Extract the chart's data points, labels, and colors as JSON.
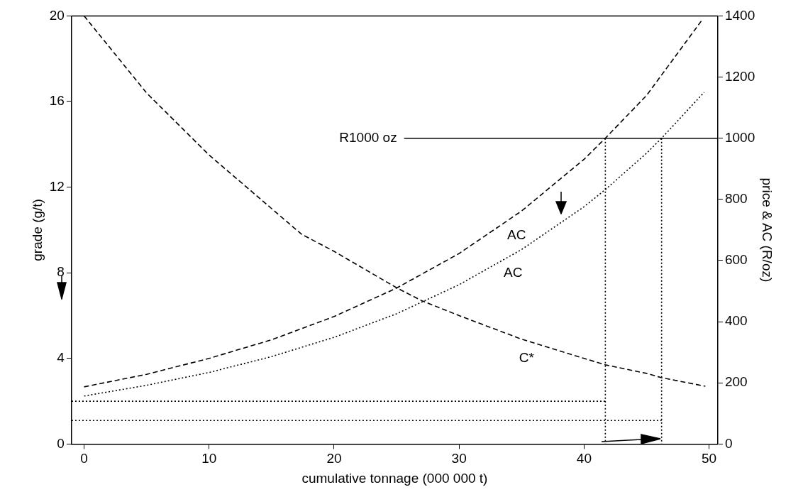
{
  "chart_data": {
    "type": "line",
    "xlabel": "cumulative tonnage (000 000 t)",
    "ylabel": "grade (g/t)",
    "y2label": "price & AC (R/oz)",
    "xlim": [
      -1,
      50.7
    ],
    "xticks": [
      0,
      10,
      20,
      30,
      40,
      50
    ],
    "ylim": [
      0,
      20
    ],
    "yticks": [
      0,
      4,
      8,
      12,
      16,
      20
    ],
    "y2lim": [
      0,
      1400
    ],
    "y2ticks": [
      0,
      200,
      400,
      600,
      800,
      1000,
      1200,
      1400
    ],
    "grid": false,
    "legend": false,
    "marker": "none",
    "series": [
      {
        "name": "C*",
        "axis": "y",
        "color": "#000000",
        "line_style": "dashed",
        "x": [
          0,
          5,
          10,
          15,
          17.4,
          20,
          25,
          27,
          30,
          35,
          40,
          41.7,
          45,
          46.2,
          49.7
        ],
        "values": [
          20,
          16.4,
          13.5,
          11.0,
          9.8,
          9.0,
          7.3,
          6.7,
          6.0,
          4.9,
          4.0,
          3.7,
          3.3,
          3.1,
          2.7
        ]
      },
      {
        "name": "AC",
        "axis": "y2",
        "color": "#000000",
        "line_style": "dashed",
        "x": [
          0,
          5,
          10,
          15,
          20,
          25,
          30,
          35,
          40,
          41.7,
          45,
          49.5
        ],
        "values": [
          187,
          228,
          280,
          341,
          417,
          510,
          623,
          762,
          931,
          1000,
          1140,
          1390
        ]
      },
      {
        "name": "AC",
        "axis": "y2",
        "color": "#000000",
        "line_style": "dotted",
        "x": [
          0,
          5,
          10,
          15,
          20,
          25,
          30,
          35,
          40,
          41.7,
          45,
          46.2,
          49.6
        ],
        "values": [
          157,
          192,
          234,
          286,
          349,
          426,
          521,
          636,
          776,
          832,
          951,
          1000,
          1150
        ]
      },
      {
        "name": "R1000 oz",
        "axis": "y2",
        "color": "#000000",
        "line_style": "solid",
        "x": [
          25.6,
          50.7
        ],
        "values": [
          1000,
          1000
        ]
      },
      {
        "axis": "y2",
        "color": "#000000",
        "line_style": "dotted",
        "x": [
          41.7,
          41.7
        ],
        "values": [
          1000,
          0
        ]
      },
      {
        "axis": "y2",
        "color": "#000000",
        "line_style": "dotted",
        "x": [
          46.2,
          46.2
        ],
        "values": [
          1000,
          0
        ]
      },
      {
        "axis": "y",
        "color": "#000000",
        "line_style": "dotted",
        "x": [
          -1,
          41.7
        ],
        "values": [
          2.0,
          2.0
        ]
      },
      {
        "axis": "y",
        "color": "#000000",
        "line_style": "dotted",
        "x": [
          -1,
          46.2
        ],
        "values": [
          1.1,
          1.1
        ]
      }
    ]
  }
}
